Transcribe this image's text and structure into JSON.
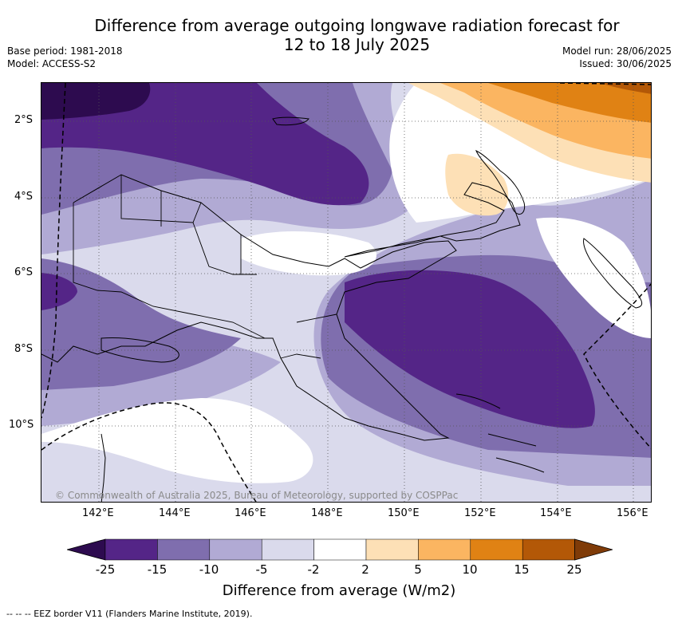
{
  "title_line1": "Difference from average outgoing longwave radiation forecast for",
  "title_line2": "12 to 18 July 2025",
  "meta_left": [
    "Base period: 1981-2018",
    "Model: ACCESS-S2"
  ],
  "meta_right": [
    "Model run: 28/06/2025",
    "Issued: 30/06/2025"
  ],
  "copyright": "© Commonwealth of Australia 2025, Bureau of Meteorology, supported by COSPPac",
  "y_ticks": [
    "2°S",
    "4°S",
    "6°S",
    "8°S",
    "10°S"
  ],
  "x_ticks": [
    "142°E",
    "144°E",
    "146°E",
    "148°E",
    "150°E",
    "152°E",
    "154°E",
    "156°E"
  ],
  "colorbar": {
    "labels": [
      "-25",
      "-15",
      "-10",
      "-5",
      "-2",
      "2",
      "5",
      "10",
      "15",
      "25"
    ],
    "colors": [
      "#2d0b4f",
      "#542587",
      "#7f6eae",
      "#b1aad4",
      "#dadaec",
      "#ffffff",
      "#fde0b6",
      "#fbb561",
      "#e08214",
      "#b35807",
      "#7f3b08"
    ],
    "title": "Difference from average (W/m2)"
  },
  "eez_note": "-- --  -- EEZ border V11 (Flanders Marine Institute, 2019)."
}
